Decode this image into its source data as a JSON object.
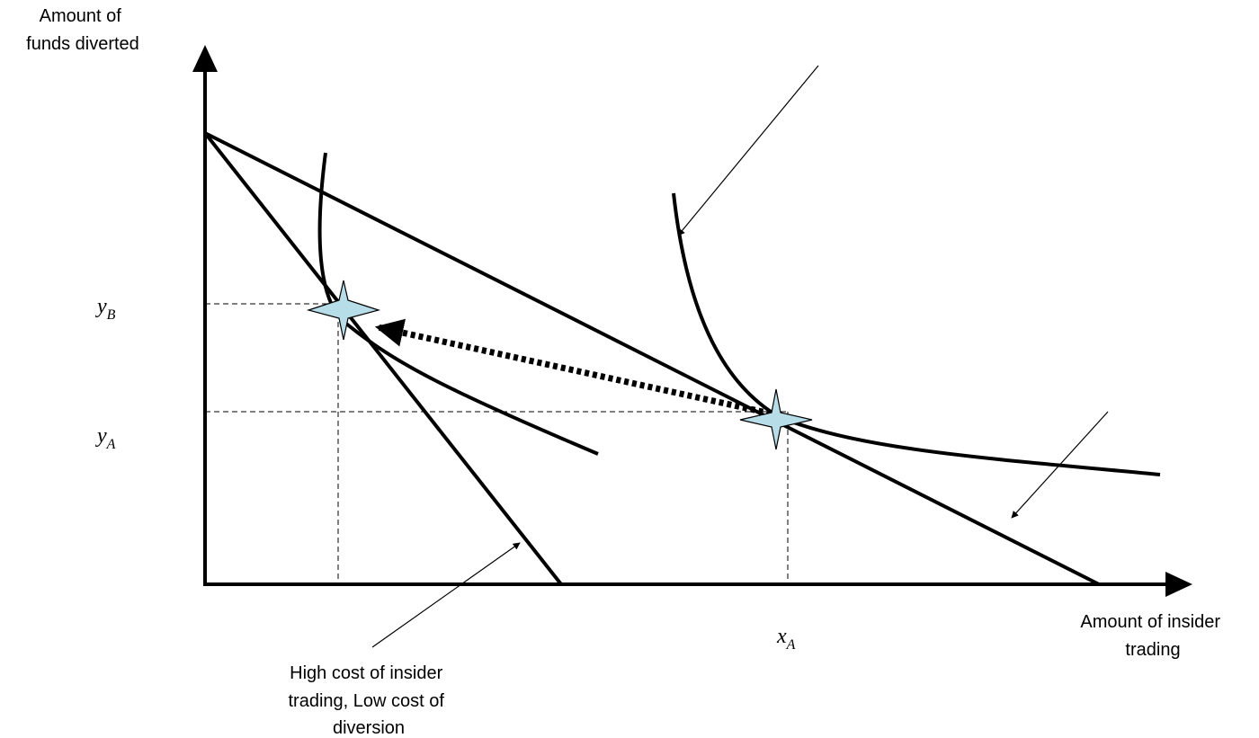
{
  "y_axis_label": [
    "Amount of",
    "funds diverted"
  ],
  "x_axis_label": [
    "Amount of insider",
    "trading"
  ],
  "tick_labels": {
    "yB": {
      "main": "y",
      "sub": "B"
    },
    "yA": {
      "main": "y",
      "sub": "A"
    },
    "xA": {
      "main": "x",
      "sub": "A"
    }
  },
  "annotation": [
    "High cost of insider",
    "trading, Low cost of",
    "diversion"
  ],
  "colors": {
    "stroke": "#000000",
    "star_fill": "#b7dde8",
    "background": "#ffffff"
  },
  "icons": {
    "equilibrium_marker": "four-point-star-icon"
  }
}
